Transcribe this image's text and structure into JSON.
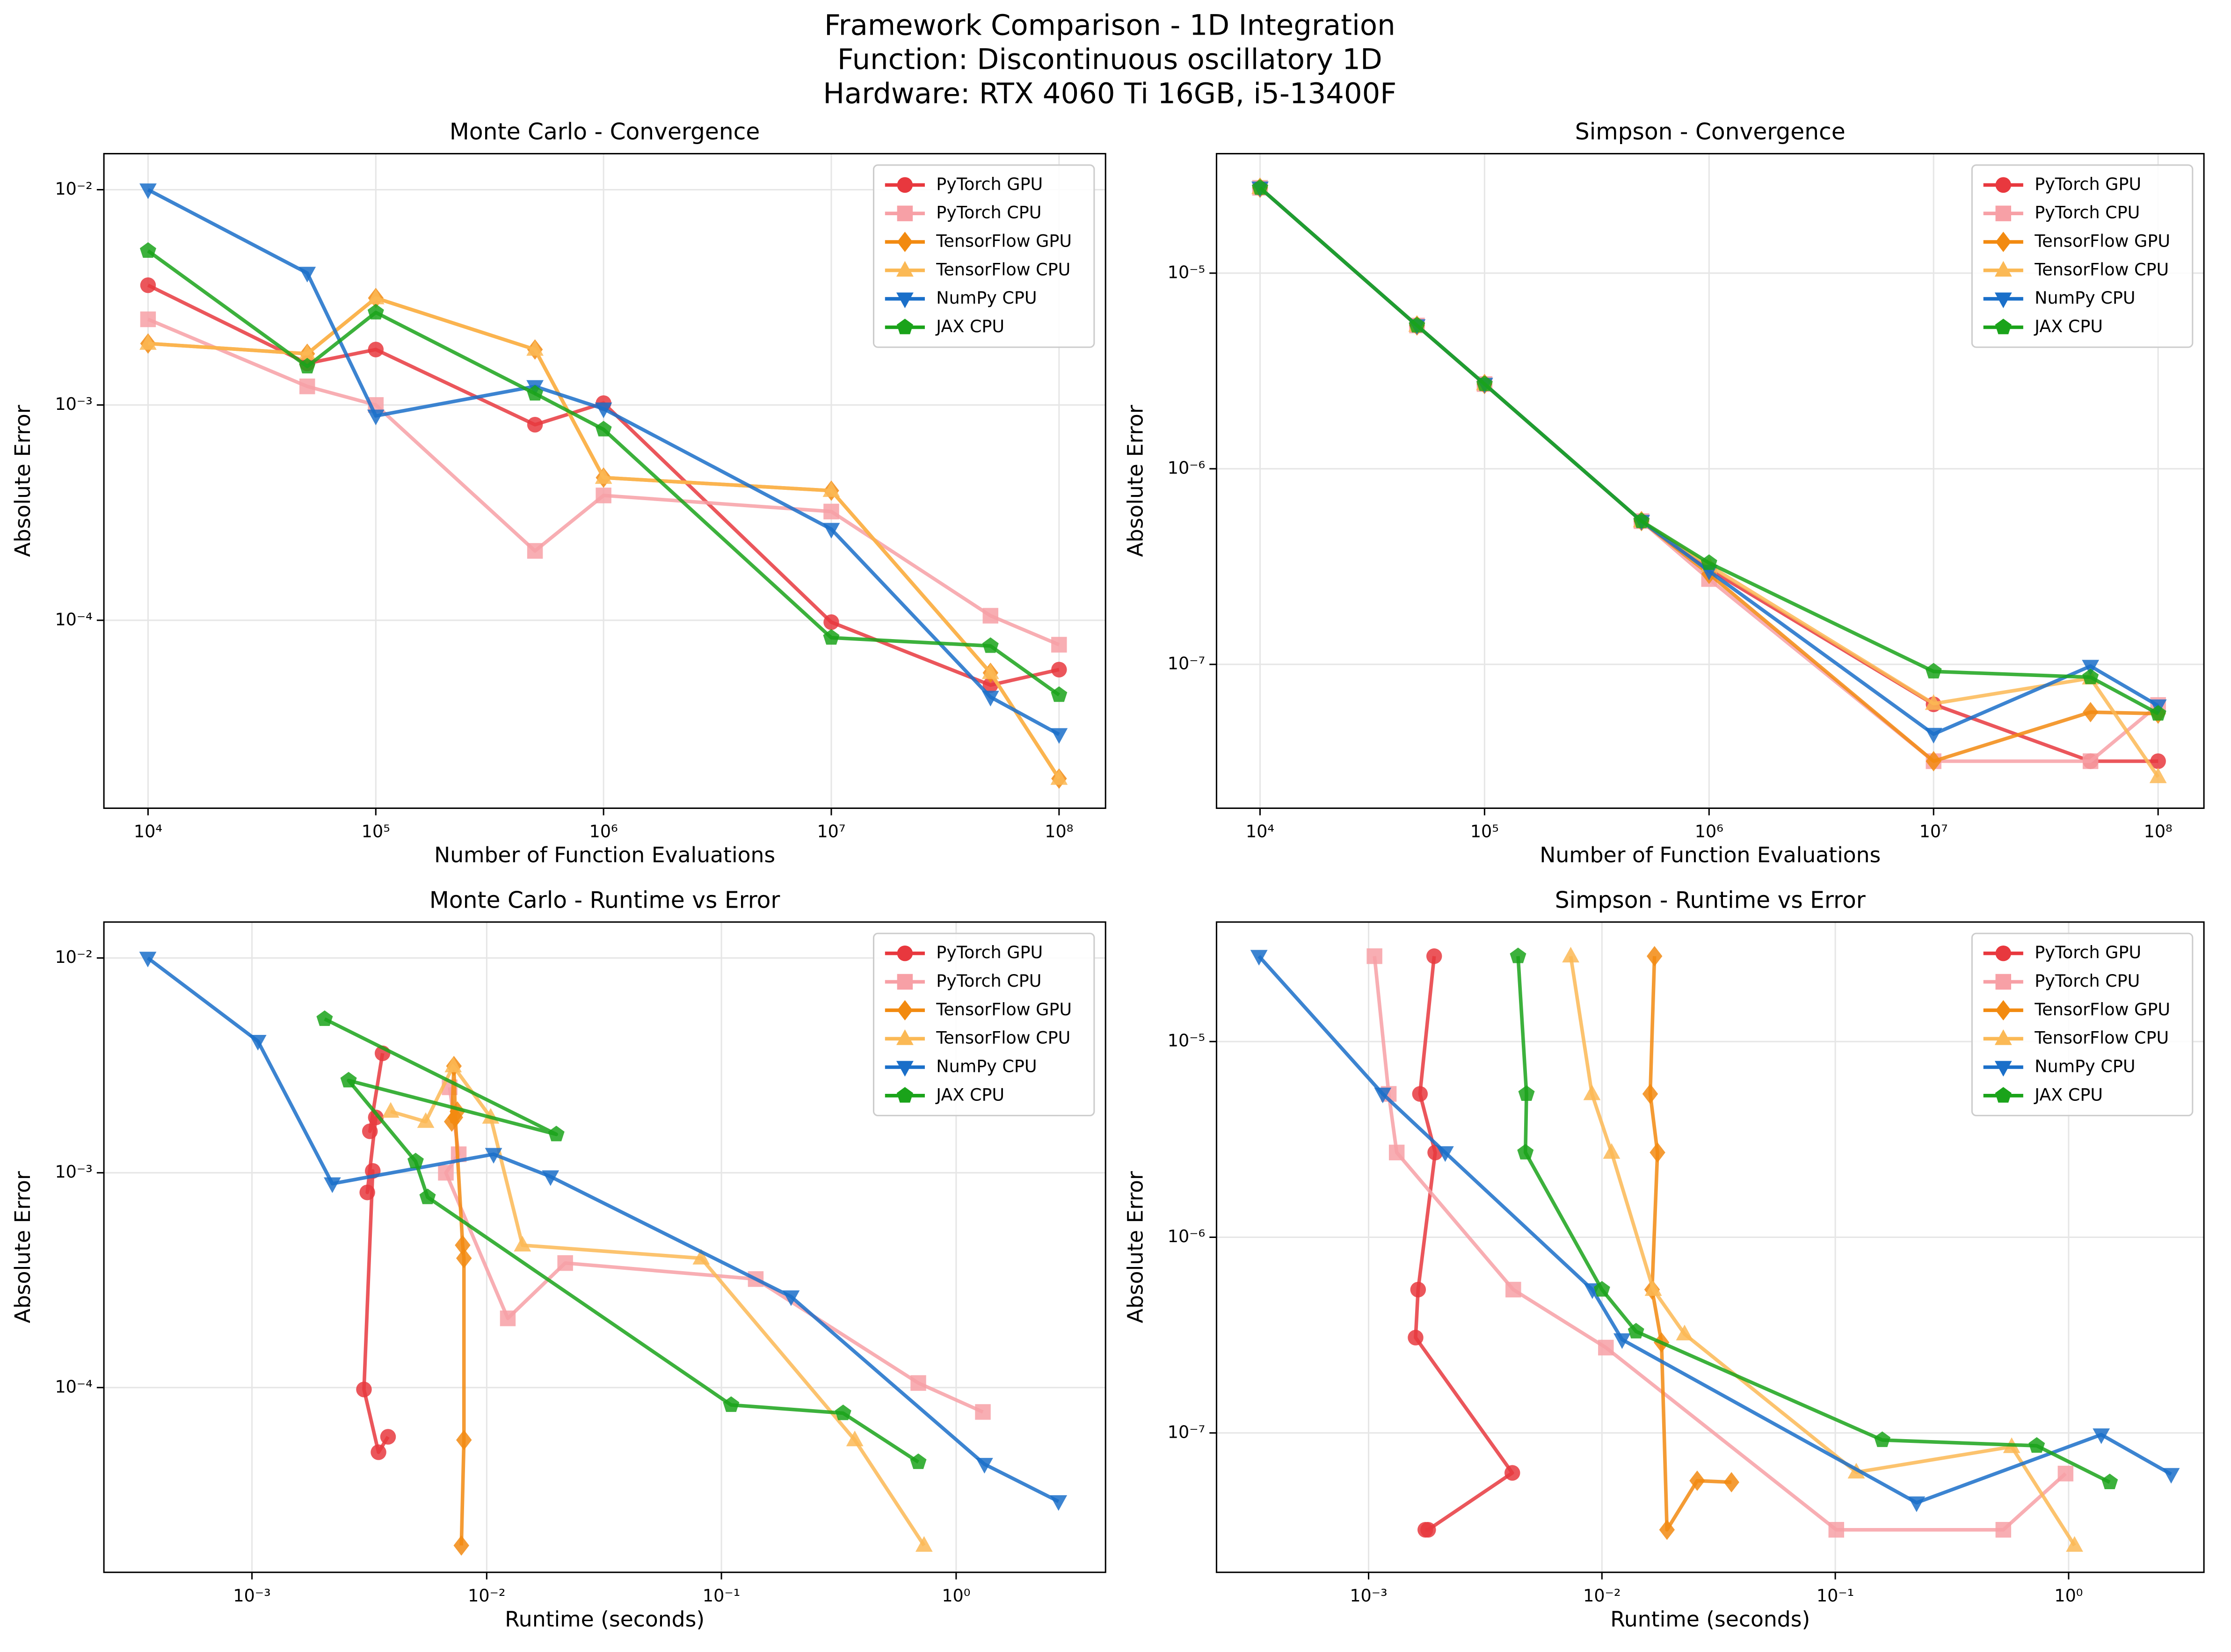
{
  "title": [
    "Framework Comparison - 1D Integration",
    "Function: Discontinuous oscillatory 1D",
    "Hardware: RTX 4060 Ti 16GB, i5-13400F"
  ],
  "chart_data": [
    {
      "type": "line",
      "title": "Monte Carlo - Convergence",
      "x_label": "Number of Function Evaluations",
      "y_label": "Absolute Error",
      "xscale": "log",
      "yscale": "log",
      "grid": true,
      "legend": "upper right",
      "x": [
        10000,
        50000,
        100000,
        500000,
        1000000,
        10000000,
        50000000,
        100000000
      ],
      "xlim": [
        6400,
        160000000
      ],
      "ylim": [
        1.34e-05,
        0.0147
      ],
      "xticks": [
        {
          "value": 10000,
          "label": "10⁴"
        },
        {
          "value": 100000,
          "label": "10⁵"
        },
        {
          "value": 1000000,
          "label": "10⁶"
        },
        {
          "value": 10000000,
          "label": "10⁷"
        },
        {
          "value": 100000000,
          "label": "10⁸"
        }
      ],
      "yticks": [
        {
          "value": 0.01,
          "label": "10⁻²"
        },
        {
          "value": 0.001,
          "label": "10⁻³"
        },
        {
          "value": 0.0001,
          "label": "10⁻⁴"
        }
      ],
      "series": [
        {
          "name": "PyTorch GPU",
          "color": "#e8383e",
          "marker": "o",
          "values": [
            0.0036,
            0.00156,
            0.00181,
            0.00081,
            0.00102,
            9.8e-05,
            5e-05,
            5.9e-05
          ]
        },
        {
          "name": "PyTorch CPU",
          "color": "#f7a0a6",
          "marker": "s",
          "values": [
            0.0025,
            0.00122,
            0.001,
            0.00021,
            0.00038,
            0.00032,
            0.000105,
            7.7e-05
          ]
        },
        {
          "name": "TensorFlow GPU",
          "color": "#f28a10",
          "marker": "D",
          "values": [
            0.00193,
            0.00173,
            0.00314,
            0.00181,
            0.00046,
            0.0004,
            5.7e-05,
            1.84e-05
          ]
        },
        {
          "name": "TensorFlow CPU",
          "color": "#fbb955",
          "marker": "^",
          "values": [
            0.00193,
            0.00173,
            0.00314,
            0.00181,
            0.00046,
            0.0004,
            5.7e-05,
            1.84e-05
          ]
        },
        {
          "name": "NumPy CPU",
          "color": "#1a6fc9",
          "marker": "v",
          "values": [
            0.01,
            0.0041,
            0.00089,
            0.00122,
            0.00096,
            0.000265,
            4.4e-05,
            2.95e-05
          ]
        },
        {
          "name": "JAX CPU",
          "color": "#1aa31a",
          "marker": "p",
          "values": [
            0.0052,
            0.00151,
            0.00269,
            0.00113,
            0.00077,
            8.3e-05,
            7.6e-05,
            4.5e-05
          ]
        }
      ]
    },
    {
      "type": "line",
      "title": "Simpson - Convergence",
      "x_label": "Number of Function Evaluations",
      "y_label": "Absolute Error",
      "xscale": "log",
      "yscale": "log",
      "grid": true,
      "legend": "upper right",
      "x": [
        10000,
        50000,
        100000,
        500000,
        1000000,
        10000000,
        50000000,
        100000000
      ],
      "xlim": [
        6400,
        160000000
      ],
      "ylim": [
        1.84e-08,
        4.08e-05
      ],
      "xticks": [
        {
          "value": 10000,
          "label": "10⁴"
        },
        {
          "value": 100000,
          "label": "10⁵"
        },
        {
          "value": 1000000,
          "label": "10⁶"
        },
        {
          "value": 10000000,
          "label": "10⁷"
        },
        {
          "value": 100000000,
          "label": "10⁸"
        }
      ],
      "yticks": [
        {
          "value": 1e-05,
          "label": "10⁻⁵"
        },
        {
          "value": 1e-06,
          "label": "10⁻⁶"
        },
        {
          "value": 1e-07,
          "label": "10⁻⁷"
        }
      ],
      "series": [
        {
          "name": "PyTorch GPU",
          "color": "#e8383e",
          "marker": "o",
          "values": [
            2.73e-05,
            5.4e-06,
            2.71e-06,
            5.4e-07,
            3.07e-07,
            6.25e-08,
            3.2e-08,
            3.2e-08
          ]
        },
        {
          "name": "PyTorch CPU",
          "color": "#f7a0a6",
          "marker": "s",
          "values": [
            2.73e-05,
            5.4e-06,
            2.71e-06,
            5.4e-07,
            2.73e-07,
            3.2e-08,
            3.2e-08,
            6.2e-08
          ]
        },
        {
          "name": "TensorFlow GPU",
          "color": "#f28a10",
          "marker": "D",
          "values": [
            2.73e-05,
            5.4e-06,
            2.71e-06,
            5.4e-07,
            2.9e-07,
            3.2e-08,
            5.7e-08,
            5.6e-08
          ]
        },
        {
          "name": "TensorFlow CPU",
          "color": "#fbb955",
          "marker": "^",
          "values": [
            2.73e-05,
            5.4e-06,
            2.71e-06,
            5.4e-07,
            3.2e-07,
            6.3e-08,
            8.5e-08,
            2.66e-08
          ]
        },
        {
          "name": "NumPy CPU",
          "color": "#1a6fc9",
          "marker": "v",
          "values": [
            2.73e-05,
            5.4e-06,
            2.71e-06,
            5.4e-07,
            3e-07,
            4.4e-08,
            9.8e-08,
            6.15e-08
          ]
        },
        {
          "name": "JAX CPU",
          "color": "#1aa31a",
          "marker": "p",
          "values": [
            2.73e-05,
            5.4e-06,
            2.71e-06,
            5.4e-07,
            3.3e-07,
            9.2e-08,
            8.6e-08,
            5.6e-08
          ]
        }
      ]
    },
    {
      "type": "line",
      "title": "Monte Carlo - Runtime vs Error",
      "x_label": "Runtime (seconds)",
      "y_label": "Absolute Error",
      "xscale": "log",
      "yscale": "log",
      "grid": true,
      "legend": "upper right",
      "xlim": [
        0.000234,
        4.33
      ],
      "ylim": [
        1.38e-05,
        0.0147
      ],
      "xticks": [
        {
          "value": 0.001,
          "label": "10⁻³"
        },
        {
          "value": 0.01,
          "label": "10⁻²"
        },
        {
          "value": 0.1,
          "label": "10⁻¹"
        },
        {
          "value": 1,
          "label": "10⁰"
        }
      ],
      "yticks": [
        {
          "value": 0.01,
          "label": "10⁻²"
        },
        {
          "value": 0.001,
          "label": "10⁻³"
        },
        {
          "value": 0.0001,
          "label": "10⁻⁴"
        }
      ],
      "series": [
        {
          "name": "PyTorch GPU",
          "color": "#e8383e",
          "marker": "o",
          "x": [
            0.0036,
            0.00318,
            0.00337,
            0.0031,
            0.00327,
            0.003,
            0.00346,
            0.0038
          ],
          "values": [
            0.0036,
            0.00156,
            0.00181,
            0.00081,
            0.00102,
            9.8e-05,
            5e-05,
            5.9e-05
          ]
        },
        {
          "name": "PyTorch CPU",
          "color": "#f7a0a6",
          "marker": "s",
          "x": [
            0.00695,
            0.0076,
            0.0067,
            0.0123,
            0.0216,
            0.14,
            0.69,
            1.3
          ],
          "values": [
            0.0025,
            0.00122,
            0.001,
            0.00021,
            0.00038,
            0.00032,
            0.000105,
            7.7e-05
          ]
        },
        {
          "name": "TensorFlow GPU",
          "color": "#f28a10",
          "marker": "D",
          "x": [
            0.0075,
            0.0071,
            0.00725,
            0.00735,
            0.0079,
            0.008,
            0.008,
            0.0078
          ],
          "values": [
            0.00193,
            0.00173,
            0.00314,
            0.00181,
            0.00046,
            0.0004,
            5.7e-05,
            1.84e-05
          ]
        },
        {
          "name": "TensorFlow CPU",
          "color": "#fbb955",
          "marker": "^",
          "x": [
            0.0039,
            0.0055,
            0.0072,
            0.0104,
            0.0142,
            0.082,
            0.37,
            0.73
          ],
          "values": [
            0.00193,
            0.00173,
            0.00314,
            0.00181,
            0.00046,
            0.0004,
            5.7e-05,
            1.84e-05
          ]
        },
        {
          "name": "NumPy CPU",
          "color": "#1a6fc9",
          "marker": "v",
          "x": [
            0.00036,
            0.00106,
            0.0022,
            0.0107,
            0.0187,
            0.198,
            1.32,
            2.73
          ],
          "values": [
            0.01,
            0.0041,
            0.00089,
            0.00122,
            0.00096,
            0.000265,
            4.4e-05,
            2.95e-05
          ]
        },
        {
          "name": "JAX CPU",
          "color": "#1aa31a",
          "marker": "p",
          "x": [
            0.00204,
            0.0198,
            0.00258,
            0.00498,
            0.0056,
            0.11,
            0.33,
            0.69
          ],
          "values": [
            0.0052,
            0.00151,
            0.00269,
            0.00113,
            0.00077,
            8.3e-05,
            7.6e-05,
            4.5e-05
          ]
        }
      ]
    },
    {
      "type": "line",
      "title": "Simpson - Runtime vs Error",
      "x_label": "Runtime (seconds)",
      "y_label": "Absolute Error",
      "xscale": "log",
      "yscale": "log",
      "grid": true,
      "legend": "upper right",
      "xlim": [
        0.000223,
        3.8
      ],
      "ylim": [
        1.94e-08,
        4.08e-05
      ],
      "xticks": [
        {
          "value": 0.001,
          "label": "10⁻³"
        },
        {
          "value": 0.01,
          "label": "10⁻²"
        },
        {
          "value": 0.1,
          "label": "10⁻¹"
        },
        {
          "value": 1,
          "label": "10⁰"
        }
      ],
      "yticks": [
        {
          "value": 1e-05,
          "label": "10⁻⁵"
        },
        {
          "value": 1e-06,
          "label": "10⁻⁶"
        },
        {
          "value": 1e-07,
          "label": "10⁻⁷"
        }
      ],
      "series": [
        {
          "name": "PyTorch GPU",
          "color": "#e8383e",
          "marker": "o",
          "x": [
            0.00191,
            0.00166,
            0.00193,
            0.00163,
            0.00159,
            0.00413,
            0.0018,
            0.00175
          ],
          "values": [
            2.73e-05,
            5.4e-06,
            2.71e-06,
            5.4e-07,
            3.07e-07,
            6.25e-08,
            3.2e-08,
            3.2e-08
          ]
        },
        {
          "name": "PyTorch CPU",
          "color": "#f7a0a6",
          "marker": "s",
          "x": [
            0.00106,
            0.00122,
            0.00132,
            0.00417,
            0.0104,
            0.101,
            0.525,
            0.97
          ],
          "values": [
            2.73e-05,
            5.4e-06,
            2.71e-06,
            5.4e-07,
            2.73e-07,
            3.2e-08,
            3.2e-08,
            6.2e-08
          ]
        },
        {
          "name": "TensorFlow GPU",
          "color": "#f28a10",
          "marker": "D",
          "x": [
            0.0168,
            0.0161,
            0.0173,
            0.0164,
            0.018,
            0.019,
            0.0256,
            0.0359
          ],
          "values": [
            2.73e-05,
            5.4e-06,
            2.71e-06,
            5.4e-07,
            2.9e-07,
            3.2e-08,
            5.7e-08,
            5.6e-08
          ]
        },
        {
          "name": "TensorFlow CPU",
          "color": "#fbb955",
          "marker": "^",
          "x": [
            0.00735,
            0.00906,
            0.011,
            0.0166,
            0.0226,
            0.123,
            0.57,
            1.06
          ],
          "values": [
            2.73e-05,
            5.4e-06,
            2.71e-06,
            5.4e-07,
            3.2e-07,
            6.3e-08,
            8.5e-08,
            2.66e-08
          ]
        },
        {
          "name": "NumPy CPU",
          "color": "#1a6fc9",
          "marker": "v",
          "x": [
            0.000339,
            0.00115,
            0.00213,
            0.0091,
            0.0122,
            0.223,
            1.38,
            2.75
          ],
          "values": [
            2.73e-05,
            5.4e-06,
            2.71e-06,
            5.4e-07,
            3e-07,
            4.4e-08,
            9.8e-08,
            6.15e-08
          ]
        },
        {
          "name": "JAX CPU",
          "color": "#1aa31a",
          "marker": "p",
          "x": [
            0.00437,
            0.00475,
            0.0047,
            0.01,
            0.014,
            0.159,
            0.73,
            1.5
          ],
          "values": [
            2.73e-05,
            5.4e-06,
            2.71e-06,
            5.4e-07,
            3.3e-07,
            9.2e-08,
            8.6e-08,
            5.6e-08
          ]
        }
      ]
    }
  ]
}
